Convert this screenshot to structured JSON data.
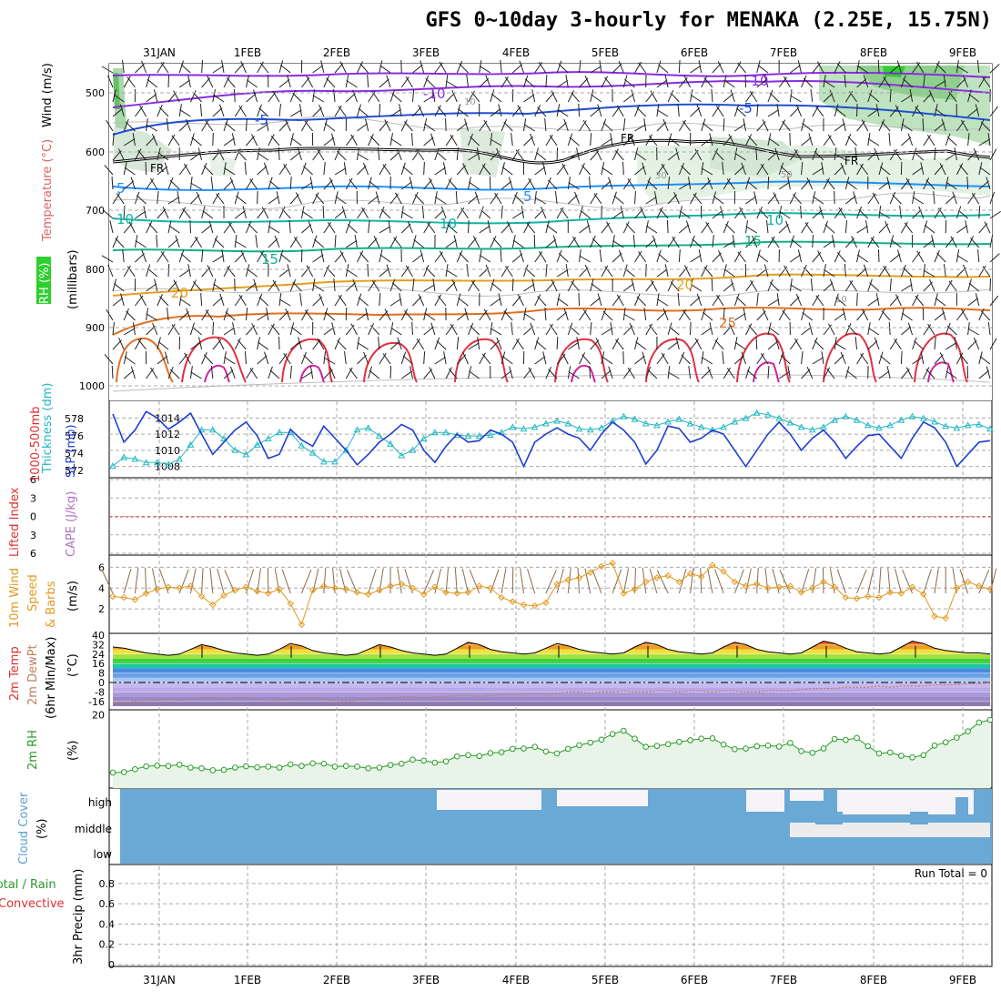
{
  "header": {
    "title": "GFS 0~10day 3-hourly for MENAKA (2.25E, 15.75N)"
  },
  "dates": [
    "31JAN",
    "1FEB",
    "2FEB",
    "3FEB",
    "4FEB",
    "5FEB",
    "6FEB",
    "7FEB",
    "8FEB",
    "9FEB"
  ],
  "colors": {
    "grid": "#aaaaaa",
    "temp_minus10": "#8a2be2",
    "temp_minus5": "#1f4fd6",
    "temp_5": "#1e90ff",
    "temp_10": "#11b5a5",
    "temp_15": "#12b08a",
    "temp_20": "#e2a020",
    "temp_25": "#e07020",
    "temp_30": "#e03040",
    "freezing": "#000000",
    "slp": "#1f3fd0",
    "thickness": "#20b8c0",
    "lifted": "#e03030",
    "wind10": "#e09a20",
    "dew": "#c08060",
    "rh": "#2a9a2a",
    "rh_fill": "#e8f4e8",
    "cloud": "#6aa8d6",
    "cloud_clear": "#f6f4f6"
  },
  "panels": {
    "upper": {
      "ylabel_wind": "Wind (m/s)",
      "ylabel_temp": "Temperature (°C)",
      "ylabel_rh": "RH (%)",
      "ylabel_unit": "(millibars)",
      "yticks": [
        "500",
        "600",
        "700",
        "800",
        "900",
        "1000"
      ],
      "contour_labels": {
        "minus10": "-10",
        "minus5": "-5",
        "fr": "FR",
        "plus5": "5",
        "plus10": "10",
        "plus15": "15",
        "plus20": "20",
        "plus25": "25",
        "rh10": "10",
        "rh30": "30",
        "rh50": "50"
      }
    },
    "slp": {
      "ylabel_thick": "1000-500mb",
      "ylabel_thick2": "Thickness (dm)",
      "ylabel_slp": "SLP (mb)",
      "left_ticks": [
        "578",
        "576",
        "574",
        "572"
      ],
      "right_ticks": [
        "1014",
        "1012",
        "1010",
        "1008"
      ]
    },
    "cape": {
      "ylabel_li": "Lifted Index",
      "ylabel_cape": "CAPE (J/kg)",
      "ticks": [
        "6",
        "3",
        "0",
        "3",
        "6"
      ]
    },
    "wind10": {
      "ylabel1": "10m Wind",
      "ylabel2": "Speed",
      "ylabel3": "& Barbs",
      "ylabel4": "(m/s)",
      "ticks": [
        "6",
        "4",
        "2"
      ]
    },
    "temp2m": {
      "ylabel1": "2m Temp",
      "ylabel2": "2m DewPt",
      "ylabel3": "(6hr Min/Max)",
      "ylabel4": "(°C)",
      "ticks": [
        "40",
        "32",
        "24",
        "16",
        "8",
        "0",
        "-8",
        "-16"
      ]
    },
    "rh2m": {
      "ylabel1": "2m RH",
      "ylabel2": "(%)",
      "ticks": [
        "20"
      ]
    },
    "cloud": {
      "ylabel1": "Cloud Cover",
      "ylabel2": "(%)",
      "levels": [
        "high",
        "middle",
        "low"
      ]
    },
    "precip": {
      "ylabel1": "Total / Rain",
      "ylabel2": "Convective",
      "ylabel3": "3hr Precip (mm)",
      "ticks": [
        "0.8",
        "0.6",
        "0.4",
        "0.2",
        "0"
      ],
      "run_total": "Run Total = 0"
    }
  },
  "chart_data": [
    {
      "type": "line",
      "name": "slp",
      "title": "SLP (mb)",
      "xlabel": "",
      "ylabel": "SLP (mb)",
      "ylim": [
        1007,
        1016
      ],
      "values": [
        1014.5,
        1011.0,
        1012.5,
        1014.8,
        1014.0,
        1012.6,
        1013.5,
        1014.6,
        1012.0,
        1009.5,
        1011.0,
        1012.5,
        1013.5,
        1011.8,
        1009.0,
        1009.5,
        1012.6,
        1011.3,
        1010.5,
        1013.0,
        1011.5,
        1010.0,
        1008.2,
        1009.5,
        1011.0,
        1012.0,
        1013.2,
        1012.5,
        1010.0,
        1008.5,
        1010.5,
        1012.0,
        1011.0,
        1011.2,
        1012.5,
        1012.0,
        1011.0,
        1008.0,
        1011.0,
        1012.0,
        1012.8,
        1012.0,
        1011.5,
        1010.0,
        1012.0,
        1013.5,
        1012.5,
        1011.0,
        1008.3,
        1010.0,
        1013.0,
        1012.7,
        1011.0,
        1011.5,
        1012.5,
        1012.0,
        1010.0,
        1008.0,
        1010.0,
        1012.0,
        1013.5,
        1012.0,
        1010.0,
        1011.5,
        1012.5,
        1011.0,
        1009.0,
        1010.5,
        1011.8,
        1012.0,
        1010.5,
        1009.0,
        1011.5,
        1013.5,
        1012.8,
        1011.0,
        1008.0,
        1009.5,
        1011.0,
        1011.2
      ],
      "series": [
        {
          "name": "1000-500mb thickness (dm)",
          "values": [
            572.2,
            573.2,
            573.0,
            572.6,
            572.6,
            572.4,
            573.0,
            574.6,
            576.3,
            576.3,
            575.3,
            574.0,
            573.5,
            574.6,
            575.3,
            576.0,
            576.0,
            574.5,
            573.7,
            572.7,
            572.7,
            574.0,
            576.3,
            576.5,
            575.6,
            574.7,
            573.4,
            574.0,
            575.3,
            576.0,
            576.0,
            575.7,
            575.6,
            575.6,
            575.7,
            576.0,
            576.6,
            576.4,
            576.6,
            577.0,
            577.3,
            577.0,
            576.4,
            576.3,
            576.5,
            577.3,
            577.8,
            577.5,
            577.0,
            576.8,
            577.2,
            577.5,
            577.0,
            576.6,
            576.3,
            576.6,
            577.2,
            577.6,
            578.2,
            578.0,
            577.6,
            577.1,
            576.6,
            576.3,
            576.6,
            577.4,
            577.8,
            577.4,
            576.8,
            576.5,
            576.8,
            577.4,
            577.8,
            577.6,
            577.2,
            576.7,
            576.5,
            576.8,
            576.9,
            576.4
          ]
        }
      ]
    },
    {
      "type": "line",
      "name": "wind10",
      "title": "10m Wind Speed (m/s)",
      "xlabel": "",
      "ylabel": "Speed (m/s)",
      "ylim": [
        0,
        7
      ],
      "values": [
        3.2,
        3.1,
        2.9,
        3.5,
        3.9,
        4.1,
        4.0,
        4.2,
        3.2,
        2.4,
        3.3,
        3.8,
        4.1,
        3.7,
        3.5,
        3.9,
        2.5,
        0.5,
        3.8,
        4.2,
        4.0,
        3.9,
        3.6,
        3.4,
        3.8,
        4.2,
        4.4,
        4.0,
        3.4,
        4.1,
        3.6,
        3.5,
        3.6,
        4.2,
        4.0,
        3.1,
        2.7,
        2.4,
        2.3,
        2.6,
        4.4,
        4.8,
        5.0,
        5.5,
        6.1,
        6.4,
        3.5,
        3.9,
        4.6,
        5.0,
        5.2,
        4.6,
        5.4,
        5.1,
        6.2,
        5.6,
        4.6,
        4.2,
        4.4,
        4.0,
        4.1,
        4.2,
        3.6,
        4.0,
        4.6,
        4.1,
        3.1,
        3.0,
        3.2,
        3.1,
        3.6,
        3.5,
        4.1,
        3.4,
        1.3,
        1.1,
        4.0,
        4.6,
        4.2,
        3.9
      ],
      "series": []
    },
    {
      "type": "line",
      "name": "rh2m",
      "title": "2m RH (%)",
      "xlabel": "",
      "ylabel": "RH (%)",
      "ylim": [
        0,
        21
      ],
      "values": [
        2.5,
        2.6,
        3.5,
        4.4,
        4.6,
        4.5,
        4.9,
        4.0,
        3.8,
        3.2,
        3.3,
        4.0,
        4.4,
        4.1,
        4.3,
        4.0,
        5.0,
        4.5,
        5.3,
        5.2,
        4.3,
        4.5,
        4.3,
        3.8,
        4.0,
        4.8,
        5.2,
        6.4,
        6.1,
        5.5,
        5.9,
        7.4,
        7.8,
        7.5,
        8.4,
        8.7,
        9.7,
        9.8,
        10.3,
        8.9,
        8.3,
        9.7,
        10.8,
        11.6,
        12.5,
        14.2,
        15.2,
        12.8,
        10.3,
        10.6,
        11.1,
        11.8,
        12.3,
        12.8,
        12.9,
        11.0,
        9.6,
        9.8,
        10.5,
        10.7,
        10.4,
        11.5,
        9.0,
        8.5,
        9.8,
        12.7,
        12.4,
        13.0,
        10.5,
        8.3,
        8.6,
        7.6,
        7.1,
        7.8,
        10.7,
        11.7,
        13.1,
        15.0,
        17.7,
        18.5
      ],
      "series": []
    },
    {
      "type": "area",
      "name": "temp2m",
      "title": "2m Temp / DewPt (°C)",
      "xlabel": "",
      "ylabel": "°C",
      "ylim": [
        -20,
        40
      ],
      "values": [
        30,
        29,
        27,
        25,
        24,
        23,
        24,
        28,
        32,
        30,
        27,
        25,
        24,
        23,
        24,
        28,
        33,
        31,
        27,
        25,
        24,
        23,
        24,
        28,
        32,
        30,
        27,
        25,
        24,
        23,
        24,
        29,
        34,
        32,
        28,
        26,
        25,
        24,
        25,
        29,
        33,
        31,
        28,
        26,
        25,
        24,
        25,
        30,
        34,
        32,
        28,
        26,
        25,
        24,
        25,
        30,
        34,
        32,
        28,
        26,
        25,
        24,
        25,
        30,
        35,
        33,
        29,
        26,
        25,
        24,
        25,
        30,
        35,
        33,
        29,
        27,
        26,
        25,
        25,
        24
      ],
      "series": [
        {
          "name": "dew",
          "values": [
            -17,
            -17,
            -16,
            -15,
            -15,
            -14,
            -15,
            -14,
            -13,
            -13,
            -14,
            -13,
            -13,
            -14,
            -15,
            -15,
            -14,
            -13,
            -13,
            -14,
            -15,
            -16,
            -15,
            -14,
            -13,
            -13,
            -12,
            -12,
            -13,
            -12,
            -12,
            -11,
            -11,
            -12,
            -11,
            -10,
            -10,
            -10,
            -9,
            -10,
            -9,
            -8,
            -8,
            -9,
            -8,
            -8,
            -7,
            -8,
            -8,
            -7,
            -7,
            -8,
            -7,
            -7,
            -8,
            -7,
            -7,
            -8,
            -8,
            -7,
            -7,
            -7,
            -6,
            -5,
            -5,
            -5,
            -4,
            -4,
            -4,
            -3,
            -4,
            -3,
            -3,
            -3,
            -2,
            -2,
            -2,
            -1,
            -1,
            0
          ]
        }
      ]
    }
  ]
}
